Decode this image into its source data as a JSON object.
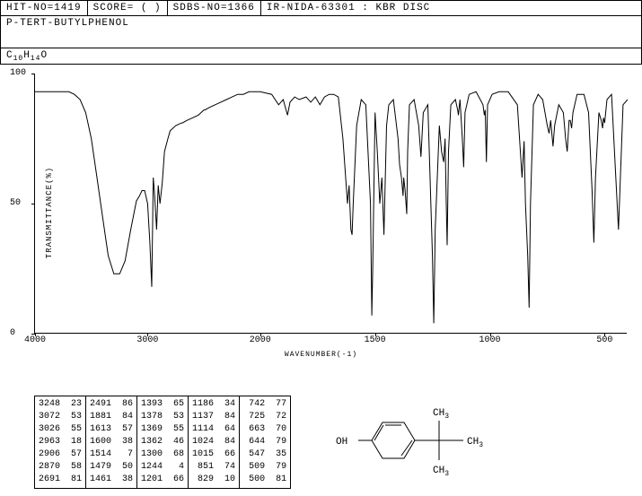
{
  "header": {
    "hit_no": "HIT-NO=1419",
    "score": "SCORE=   (  )",
    "sdbs_no": "SDBS-NO=1366",
    "method": "IR-NIDA-63301 : KBR DISC"
  },
  "compound_name": "P-TERT-BUTYLPHENOL",
  "formula_parts": [
    "C",
    "10",
    "H",
    "14",
    "O"
  ],
  "chart": {
    "type": "line",
    "y_label": "TRANSMITTANCE(%)",
    "x_label": "WAVENUMBER(-1)",
    "ylim": [
      0,
      100
    ],
    "xlim": [
      4000,
      400
    ],
    "yticks": [
      0,
      50,
      100
    ],
    "xticks": [
      4000,
      3000,
      2000,
      1500,
      1000,
      500
    ],
    "line_color": "#000000",
    "background_color": "#ffffff",
    "points": [
      [
        4000,
        93
      ],
      [
        3800,
        93
      ],
      [
        3700,
        93
      ],
      [
        3650,
        92
      ],
      [
        3600,
        90
      ],
      [
        3550,
        85
      ],
      [
        3500,
        75
      ],
      [
        3450,
        60
      ],
      [
        3400,
        45
      ],
      [
        3350,
        30
      ],
      [
        3300,
        23
      ],
      [
        3248,
        23
      ],
      [
        3200,
        28
      ],
      [
        3150,
        40
      ],
      [
        3100,
        51
      ],
      [
        3072,
        53
      ],
      [
        3050,
        55
      ],
      [
        3026,
        55
      ],
      [
        3000,
        50
      ],
      [
        2980,
        35
      ],
      [
        2963,
        18
      ],
      [
        2950,
        60
      ],
      [
        2940,
        55
      ],
      [
        2920,
        40
      ],
      [
        2906,
        57
      ],
      [
        2890,
        50
      ],
      [
        2870,
        58
      ],
      [
        2850,
        70
      ],
      [
        2820,
        75
      ],
      [
        2800,
        78
      ],
      [
        2750,
        80
      ],
      [
        2700,
        81
      ],
      [
        2691,
        81
      ],
      [
        2650,
        82
      ],
      [
        2600,
        83
      ],
      [
        2550,
        84
      ],
      [
        2500,
        86
      ],
      [
        2491,
        86
      ],
      [
        2450,
        87
      ],
      [
        2400,
        88
      ],
      [
        2350,
        89
      ],
      [
        2300,
        90
      ],
      [
        2250,
        91
      ],
      [
        2200,
        92
      ],
      [
        2150,
        92
      ],
      [
        2100,
        93
      ],
      [
        2050,
        93
      ],
      [
        2000,
        93
      ],
      [
        1950,
        92
      ],
      [
        1920,
        88
      ],
      [
        1900,
        90
      ],
      [
        1881,
        84
      ],
      [
        1870,
        89
      ],
      [
        1850,
        91
      ],
      [
        1830,
        90
      ],
      [
        1800,
        91
      ],
      [
        1780,
        89
      ],
      [
        1760,
        91
      ],
      [
        1740,
        88
      ],
      [
        1720,
        91
      ],
      [
        1700,
        92
      ],
      [
        1680,
        92
      ],
      [
        1660,
        91
      ],
      [
        1640,
        75
      ],
      [
        1620,
        50
      ],
      [
        1613,
        57
      ],
      [
        1605,
        40
      ],
      [
        1600,
        38
      ],
      [
        1595,
        50
      ],
      [
        1580,
        80
      ],
      [
        1560,
        90
      ],
      [
        1540,
        88
      ],
      [
        1520,
        50
      ],
      [
        1514,
        7
      ],
      [
        1510,
        25
      ],
      [
        1500,
        85
      ],
      [
        1490,
        70
      ],
      [
        1479,
        50
      ],
      [
        1470,
        60
      ],
      [
        1461,
        38
      ],
      [
        1450,
        80
      ],
      [
        1440,
        88
      ],
      [
        1420,
        90
      ],
      [
        1400,
        75
      ],
      [
        1393,
        65
      ],
      [
        1385,
        60
      ],
      [
        1378,
        53
      ],
      [
        1375,
        60
      ],
      [
        1369,
        55
      ],
      [
        1365,
        50
      ],
      [
        1362,
        46
      ],
      [
        1358,
        70
      ],
      [
        1350,
        88
      ],
      [
        1330,
        90
      ],
      [
        1310,
        80
      ],
      [
        1300,
        68
      ],
      [
        1290,
        85
      ],
      [
        1270,
        88
      ],
      [
        1250,
        30
      ],
      [
        1244,
        4
      ],
      [
        1238,
        40
      ],
      [
        1220,
        80
      ],
      [
        1210,
        70
      ],
      [
        1201,
        66
      ],
      [
        1195,
        75
      ],
      [
        1190,
        50
      ],
      [
        1186,
        34
      ],
      [
        1180,
        70
      ],
      [
        1170,
        88
      ],
      [
        1150,
        90
      ],
      [
        1140,
        86
      ],
      [
        1137,
        84
      ],
      [
        1130,
        90
      ],
      [
        1120,
        75
      ],
      [
        1114,
        64
      ],
      [
        1108,
        85
      ],
      [
        1090,
        92
      ],
      [
        1060,
        93
      ],
      [
        1030,
        88
      ],
      [
        1024,
        84
      ],
      [
        1020,
        86
      ],
      [
        1015,
        66
      ],
      [
        1010,
        88
      ],
      [
        990,
        92
      ],
      [
        960,
        93
      ],
      [
        920,
        93
      ],
      [
        880,
        88
      ],
      [
        860,
        60
      ],
      [
        851,
        74
      ],
      [
        845,
        50
      ],
      [
        835,
        30
      ],
      [
        829,
        10
      ],
      [
        823,
        50
      ],
      [
        810,
        88
      ],
      [
        790,
        92
      ],
      [
        770,
        90
      ],
      [
        750,
        80
      ],
      [
        742,
        77
      ],
      [
        735,
        82
      ],
      [
        725,
        72
      ],
      [
        718,
        80
      ],
      [
        700,
        88
      ],
      [
        680,
        85
      ],
      [
        670,
        75
      ],
      [
        663,
        70
      ],
      [
        655,
        82
      ],
      [
        650,
        82
      ],
      [
        644,
        79
      ],
      [
        638,
        85
      ],
      [
        620,
        92
      ],
      [
        590,
        92
      ],
      [
        570,
        85
      ],
      [
        555,
        55
      ],
      [
        547,
        35
      ],
      [
        540,
        60
      ],
      [
        525,
        85
      ],
      [
        515,
        82
      ],
      [
        509,
        79
      ],
      [
        505,
        83
      ],
      [
        500,
        81
      ],
      [
        490,
        90
      ],
      [
        470,
        92
      ],
      [
        440,
        40
      ],
      [
        420,
        88
      ],
      [
        400,
        90
      ]
    ]
  },
  "peak_table": {
    "columns": [
      [
        [
          3248,
          23
        ],
        [
          3072,
          53
        ],
        [
          3026,
          55
        ],
        [
          2963,
          18
        ],
        [
          2906,
          57
        ],
        [
          2870,
          58
        ],
        [
          2691,
          81
        ]
      ],
      [
        [
          2491,
          86
        ],
        [
          1881,
          84
        ],
        [
          1613,
          57
        ],
        [
          1600,
          38
        ],
        [
          1514,
          7
        ],
        [
          1479,
          50
        ],
        [
          1461,
          38
        ]
      ],
      [
        [
          1393,
          65
        ],
        [
          1378,
          53
        ],
        [
          1369,
          55
        ],
        [
          1362,
          46
        ],
        [
          1300,
          68
        ],
        [
          1244,
          4
        ],
        [
          1201,
          66
        ]
      ],
      [
        [
          1186,
          34
        ],
        [
          1137,
          84
        ],
        [
          1114,
          64
        ],
        [
          1024,
          84
        ],
        [
          1015,
          66
        ],
        [
          851,
          74
        ],
        [
          829,
          10
        ]
      ],
      [
        [
          742,
          77
        ],
        [
          725,
          72
        ],
        [
          663,
          70
        ],
        [
          644,
          79
        ],
        [
          547,
          35
        ],
        [
          509,
          79
        ],
        [
          500,
          81
        ]
      ]
    ]
  },
  "structure": {
    "oh_label": "OH",
    "ch3_labels": [
      "CH",
      "3",
      "CH",
      "3",
      "CH",
      "3"
    ],
    "stroke": "#000000"
  }
}
